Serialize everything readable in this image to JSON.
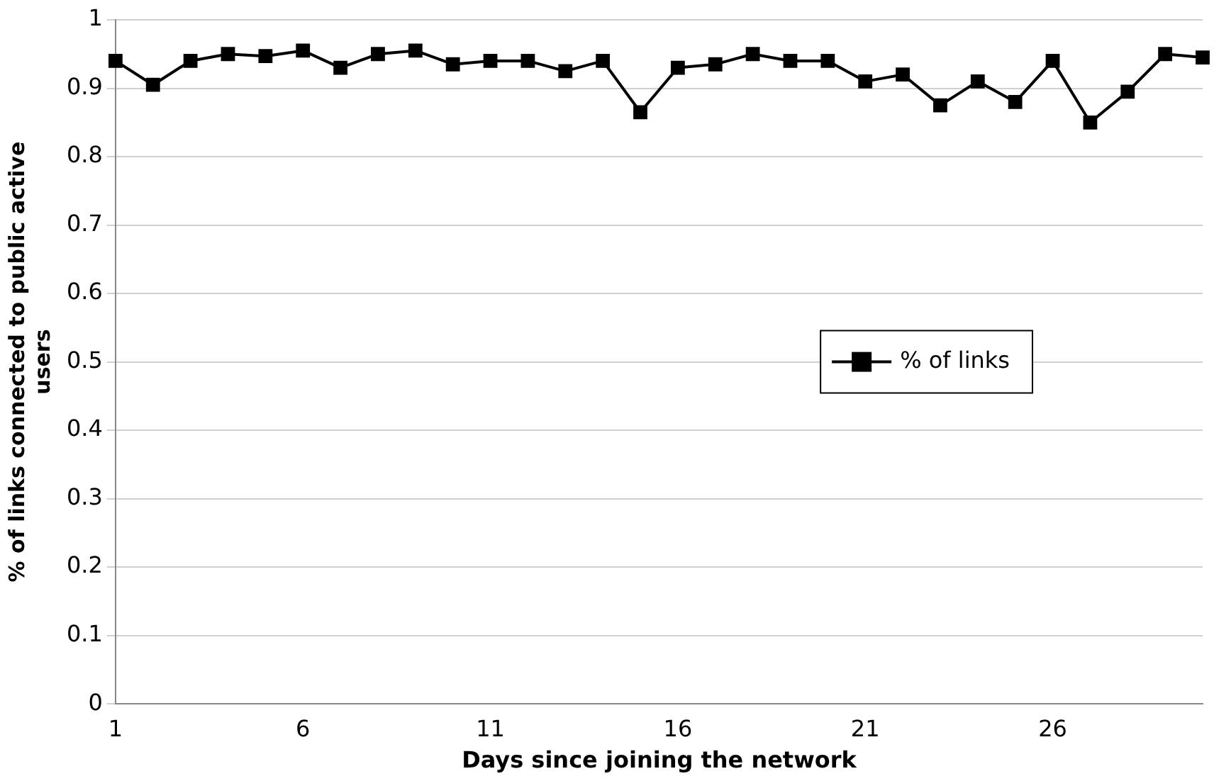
{
  "chart_data": {
    "type": "line",
    "xlabel": "Days since joining the network",
    "ylabel": "% of links connected to public active users",
    "categories": [
      "1",
      null,
      null,
      null,
      null,
      "6",
      null,
      null,
      null,
      null,
      "11",
      null,
      null,
      null,
      null,
      "16",
      null,
      null,
      null,
      null,
      "21",
      null,
      null,
      null,
      null,
      "26",
      null,
      null,
      null,
      null
    ],
    "series": [
      {
        "name": "% of links",
        "color": "#000000",
        "values": [
          0.94,
          0.905,
          0.94,
          0.95,
          0.947,
          0.955,
          0.93,
          0.95,
          0.955,
          0.935,
          0.94,
          0.94,
          0.925,
          0.94,
          0.865,
          0.93,
          0.935,
          0.95,
          0.94,
          0.94,
          0.91,
          0.92,
          0.875,
          0.91,
          0.88,
          0.94,
          0.85,
          0.895,
          0.95,
          0.945
        ]
      }
    ],
    "ylim": [
      0,
      1
    ],
    "yticks": [
      0,
      0.1,
      0.2,
      0.3,
      0.4,
      0.5,
      0.6,
      0.7,
      0.8,
      0.9,
      1
    ],
    "grid": "y",
    "legend": "right",
    "marker": "square",
    "line_style": "solid"
  }
}
